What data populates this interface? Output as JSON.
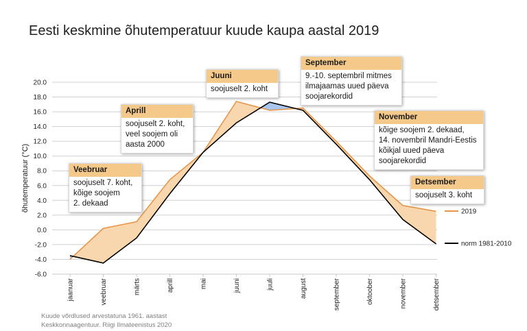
{
  "title": "Eesti keskmine õhutemperatuur kuude kaupa aastal 2019",
  "chart_data": {
    "type": "line",
    "categories": [
      "jaanuar",
      "veebruar",
      "märts",
      "aprill",
      "mai",
      "juuni",
      "juuli",
      "august",
      "september",
      "oktoober",
      "november",
      "detsember"
    ],
    "series": [
      {
        "name": "2019",
        "color": "#e8954a",
        "values": [
          -4.0,
          0.2,
          1.1,
          6.8,
          10.5,
          17.4,
          16.2,
          16.5,
          12.0,
          7.3,
          3.3,
          2.5
        ]
      },
      {
        "name": "norm 1981-2010",
        "color": "#000000",
        "values": [
          -3.5,
          -4.5,
          -1.1,
          4.9,
          10.5,
          14.5,
          17.3,
          16.2,
          11.6,
          6.8,
          1.4,
          -1.9
        ]
      }
    ],
    "fill_colors": {
      "warmer": "#f9d7ae",
      "colder": "#a9c6ee"
    },
    "ylabel": "õhutemperatuur (°C)",
    "ylim": [
      -6,
      20
    ],
    "yticks": [
      "20.0",
      "18.0",
      "16.0",
      "14.0",
      "12.0",
      "10.0",
      "8.0",
      "6.0",
      "4.0",
      "2.0",
      "0.0",
      "-2.0",
      "-4.0",
      "-6.0"
    ],
    "grid": "horizontal",
    "legend": "right"
  },
  "annotations": [
    {
      "title": "Veebruar",
      "text": [
        "soojuselt 7. koht,",
        "kõige soojem",
        "2. dekaad"
      ]
    },
    {
      "title": "Aprill",
      "text": [
        "soojuselt 2. koht,",
        "veel soojem oli",
        "aasta 2000"
      ]
    },
    {
      "title": "Juuni",
      "text": [
        "soojuselt 2. koht"
      ]
    },
    {
      "title": "September",
      "text": [
        "9.-10. septembril mitmes",
        "ilmajaamas uued päeva",
        "soojarekordid"
      ]
    },
    {
      "title": "November",
      "text": [
        "kõige soojem 2. dekaad,",
        "14. novembril Mandri-Eestis",
        "kõikjal uued päeva",
        "soojarekordid"
      ]
    },
    {
      "title": "Detsember",
      "text": [
        "soojuselt 3. koht"
      ]
    }
  ],
  "source": [
    "Kuude võrdlused arvestatuna 1961. aastast",
    "Keskkonnaagentuur. Riigi Ilmateenistus 2020"
  ]
}
